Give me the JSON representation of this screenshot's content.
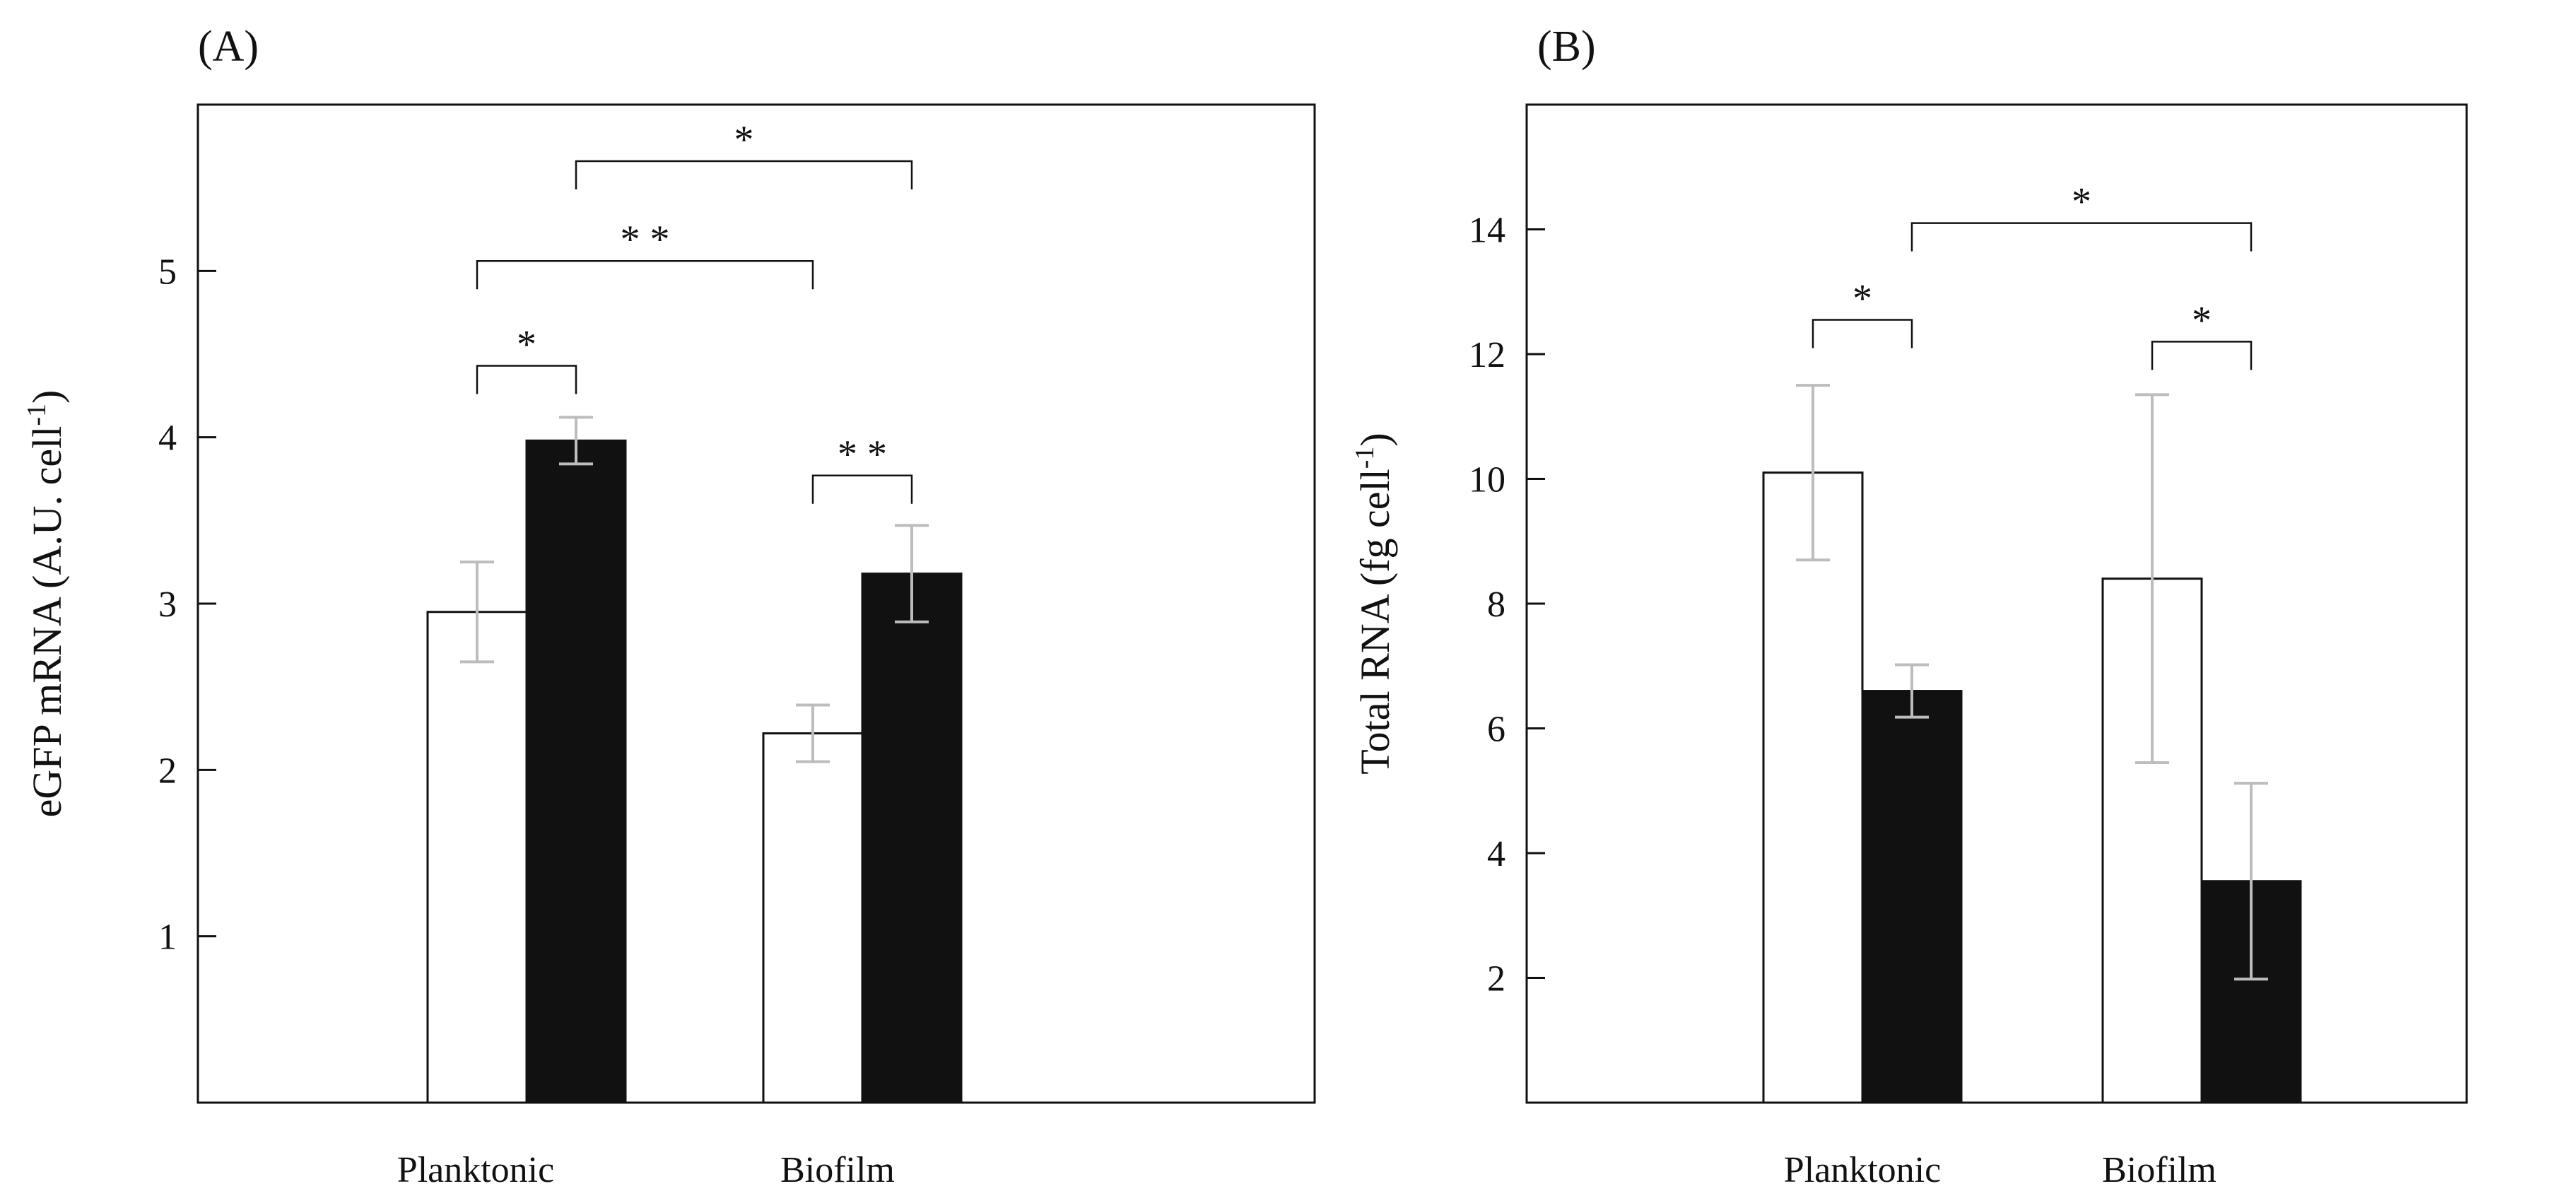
{
  "chart_data": [
    {
      "type": "bar",
      "panel_label": "(A)",
      "categories": [
        "Planktonic",
        "Biofilm"
      ],
      "ylabel": "eGFP mRNA (A.U. cell",
      "ylabel_superscript": "-1",
      "ylabel_suffix": ")",
      "ylim": [
        0,
        6
      ],
      "yticks": [
        1,
        2,
        3,
        4,
        5
      ],
      "tick_labels": [
        "1",
        "2",
        "3",
        "4",
        "5"
      ],
      "series": [
        {
          "fill": "#ffffff",
          "values": [
            2.95,
            2.22
          ],
          "errors": [
            0.3,
            0.17
          ]
        },
        {
          "fill": "#111111",
          "values": [
            3.98,
            3.18
          ],
          "errors": [
            0.14,
            0.29
          ]
        }
      ],
      "significance": [
        {
          "from": [
            0,
            0
          ],
          "to": [
            0,
            1
          ],
          "y": 4.43,
          "label": "*"
        },
        {
          "from": [
            0,
            0
          ],
          "to": [
            1,
            0
          ],
          "y": 5.06,
          "label": "* *"
        },
        {
          "from": [
            0,
            1
          ],
          "to": [
            1,
            1
          ],
          "y": 5.66,
          "label": "*"
        },
        {
          "from": [
            1,
            0
          ],
          "to": [
            1,
            1
          ],
          "y": 3.77,
          "label": "* *"
        }
      ],
      "grid": false
    },
    {
      "type": "bar",
      "panel_label": "(B)",
      "categories": [
        "Planktonic",
        "Biofilm"
      ],
      "ylabel": "Total RNA (fg cell",
      "ylabel_superscript": "-1",
      "ylabel_suffix": ")",
      "ylim": [
        0,
        16
      ],
      "yticks": [
        2,
        4,
        6,
        8,
        10,
        12,
        14
      ],
      "tick_labels": [
        "2",
        "4",
        "6",
        "8",
        "10",
        "12",
        "14"
      ],
      "series": [
        {
          "fill": "#ffffff",
          "values": [
            10.1,
            8.4
          ],
          "errors": [
            1.4,
            2.95
          ]
        },
        {
          "fill": "#111111",
          "values": [
            6.6,
            3.55
          ],
          "errors": [
            0.42,
            1.57
          ]
        }
      ],
      "significance": [
        {
          "from": [
            0,
            0
          ],
          "to": [
            0,
            1
          ],
          "y": 12.55,
          "label": "*"
        },
        {
          "from": [
            0,
            1
          ],
          "to": [
            1,
            1
          ],
          "y": 14.1,
          "label": "*"
        },
        {
          "from": [
            1,
            0
          ],
          "to": [
            1,
            1
          ],
          "y": 12.2,
          "label": "*"
        }
      ],
      "grid": false
    }
  ]
}
